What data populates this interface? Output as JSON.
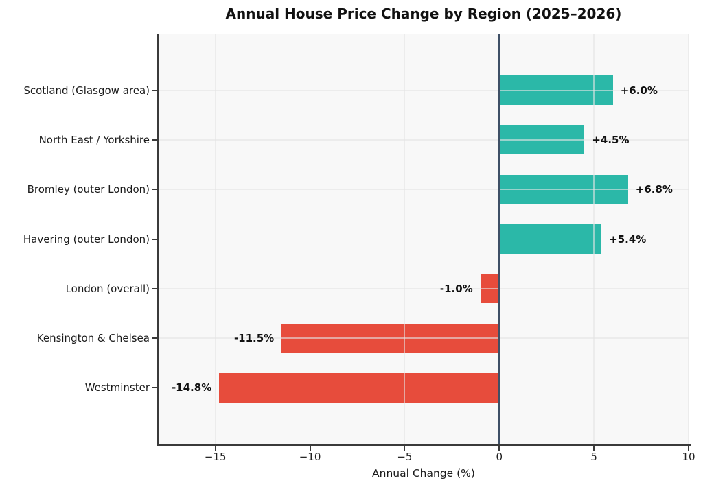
{
  "chart_data": {
    "type": "bar",
    "orientation": "horizontal",
    "title": "Annual House Price Change by Region (2025–2026)",
    "xlabel": "Annual Change (%)",
    "categories": [
      "Scotland (Glasgow area)",
      "North East / Yorkshire",
      "Bromley (outer London)",
      "Havering (outer London)",
      "London (overall)",
      "Kensington & Chelsea",
      "Westminster"
    ],
    "values": [
      6.0,
      4.5,
      6.8,
      5.4,
      -1.0,
      -11.5,
      -14.8
    ],
    "value_labels": [
      "+6.0%",
      "+4.5%",
      "+6.8%",
      "+5.4%",
      "-1.0%",
      "-11.5%",
      "-14.8%"
    ],
    "xlim": [
      -18,
      10
    ],
    "xticks": [
      -15,
      -10,
      -5,
      0,
      5,
      10
    ],
    "xtick_labels": [
      "−15",
      "−10",
      "−5",
      "0",
      "5",
      "10"
    ],
    "grid": true,
    "legend": null,
    "colors": {
      "positive": "#2bb8a8",
      "negative": "#e74c3c",
      "zero_line": "#3f5066",
      "plot_bg": "#f8f8f8",
      "spine": "#3a3a3a",
      "grid": "#e4e4e4",
      "text": "#111111"
    }
  }
}
